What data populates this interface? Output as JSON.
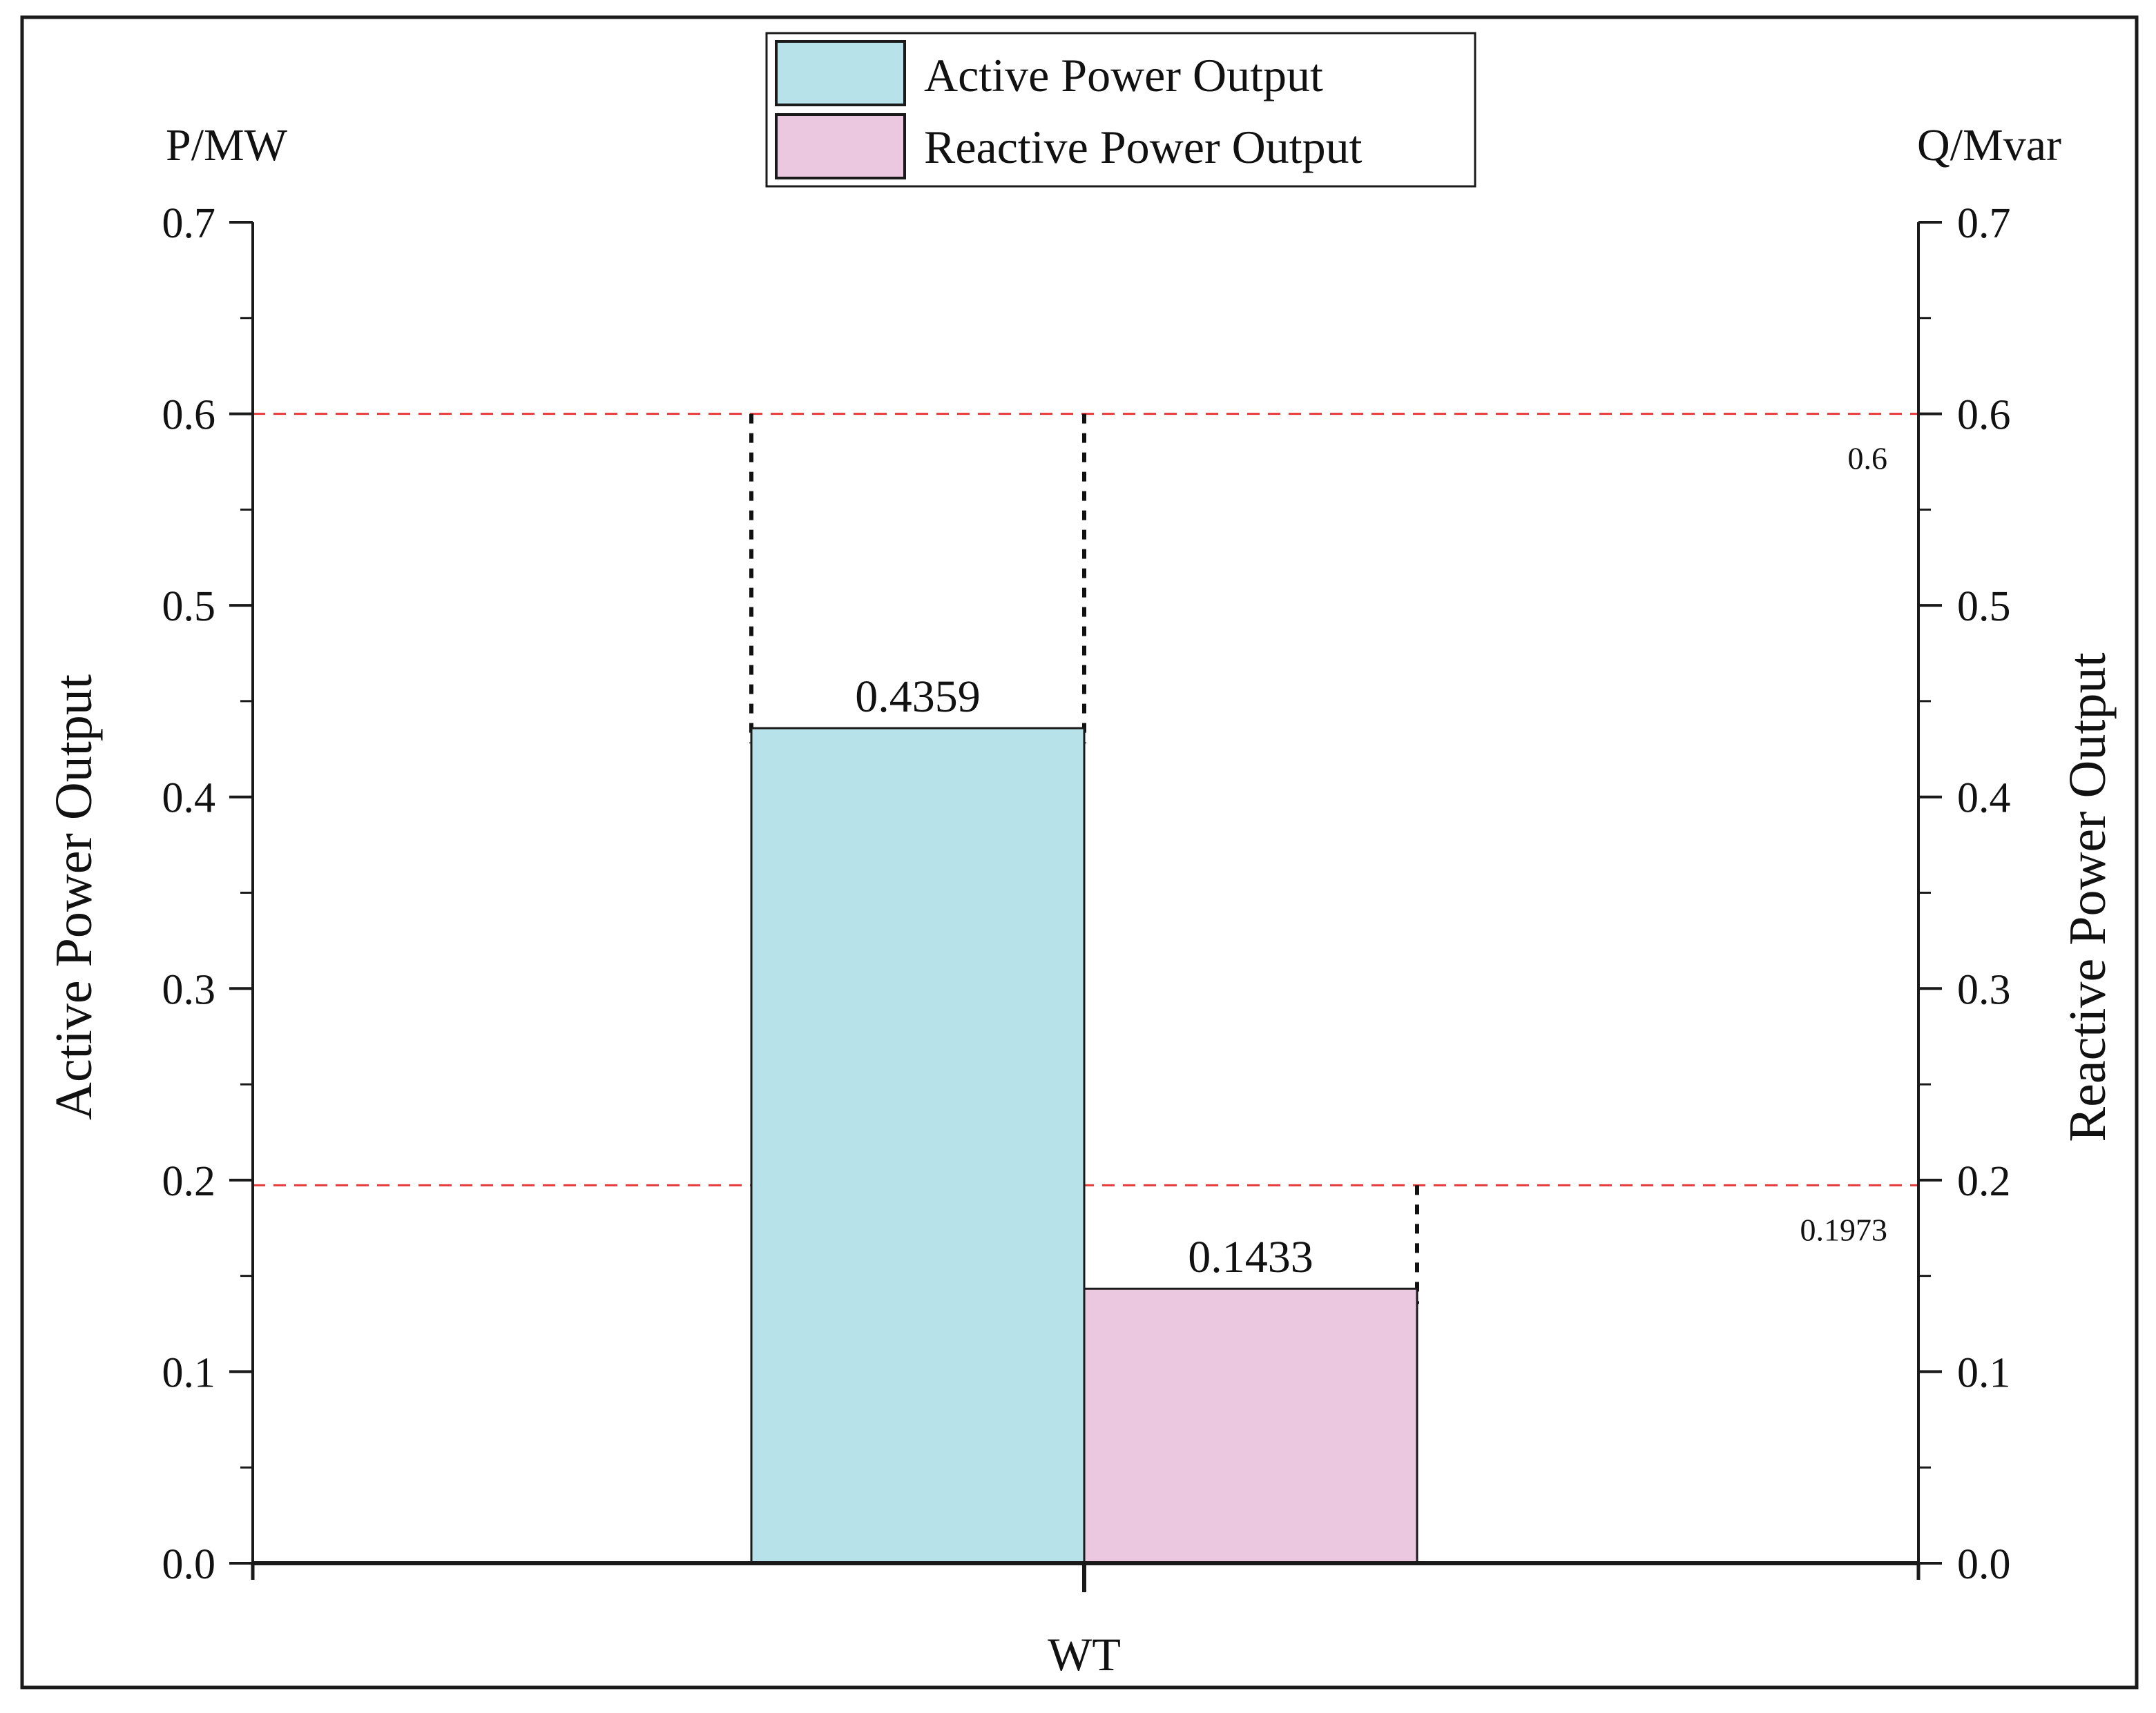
{
  "chart_data": {
    "type": "bar",
    "categories": [
      "WT"
    ],
    "series": [
      {
        "name": "Active Power Output",
        "axis": "left",
        "color": "#b8e2ea",
        "values": [
          0.4359
        ],
        "label": "0.4359"
      },
      {
        "name": "Reactive Power Output",
        "axis": "right",
        "color": "#ecc8e0",
        "values": [
          0.1433
        ],
        "label": "0.1433"
      }
    ],
    "y_left": {
      "unit": "P/MW",
      "title": "Active Power Output",
      "range": [
        0.0,
        0.7
      ],
      "ticks": [
        "0.0",
        "0.1",
        "0.2",
        "0.3",
        "0.4",
        "0.5",
        "0.6",
        "0.7"
      ]
    },
    "y_right": {
      "unit": "Q/Mvar",
      "title": "Reactive Power Output",
      "range": [
        0.0,
        0.7
      ],
      "ticks": [
        "0.0",
        "0.1",
        "0.2",
        "0.3",
        "0.4",
        "0.5",
        "0.6",
        "0.7"
      ]
    },
    "reference_lines": [
      {
        "value": 0.6,
        "label": "0.6",
        "color": "#e8393b",
        "style": "dashed"
      },
      {
        "value": 0.1973,
        "label": "0.1973",
        "color": "#e8393b",
        "style": "dashed"
      }
    ],
    "legend_position": "top-center",
    "grid": false
  }
}
